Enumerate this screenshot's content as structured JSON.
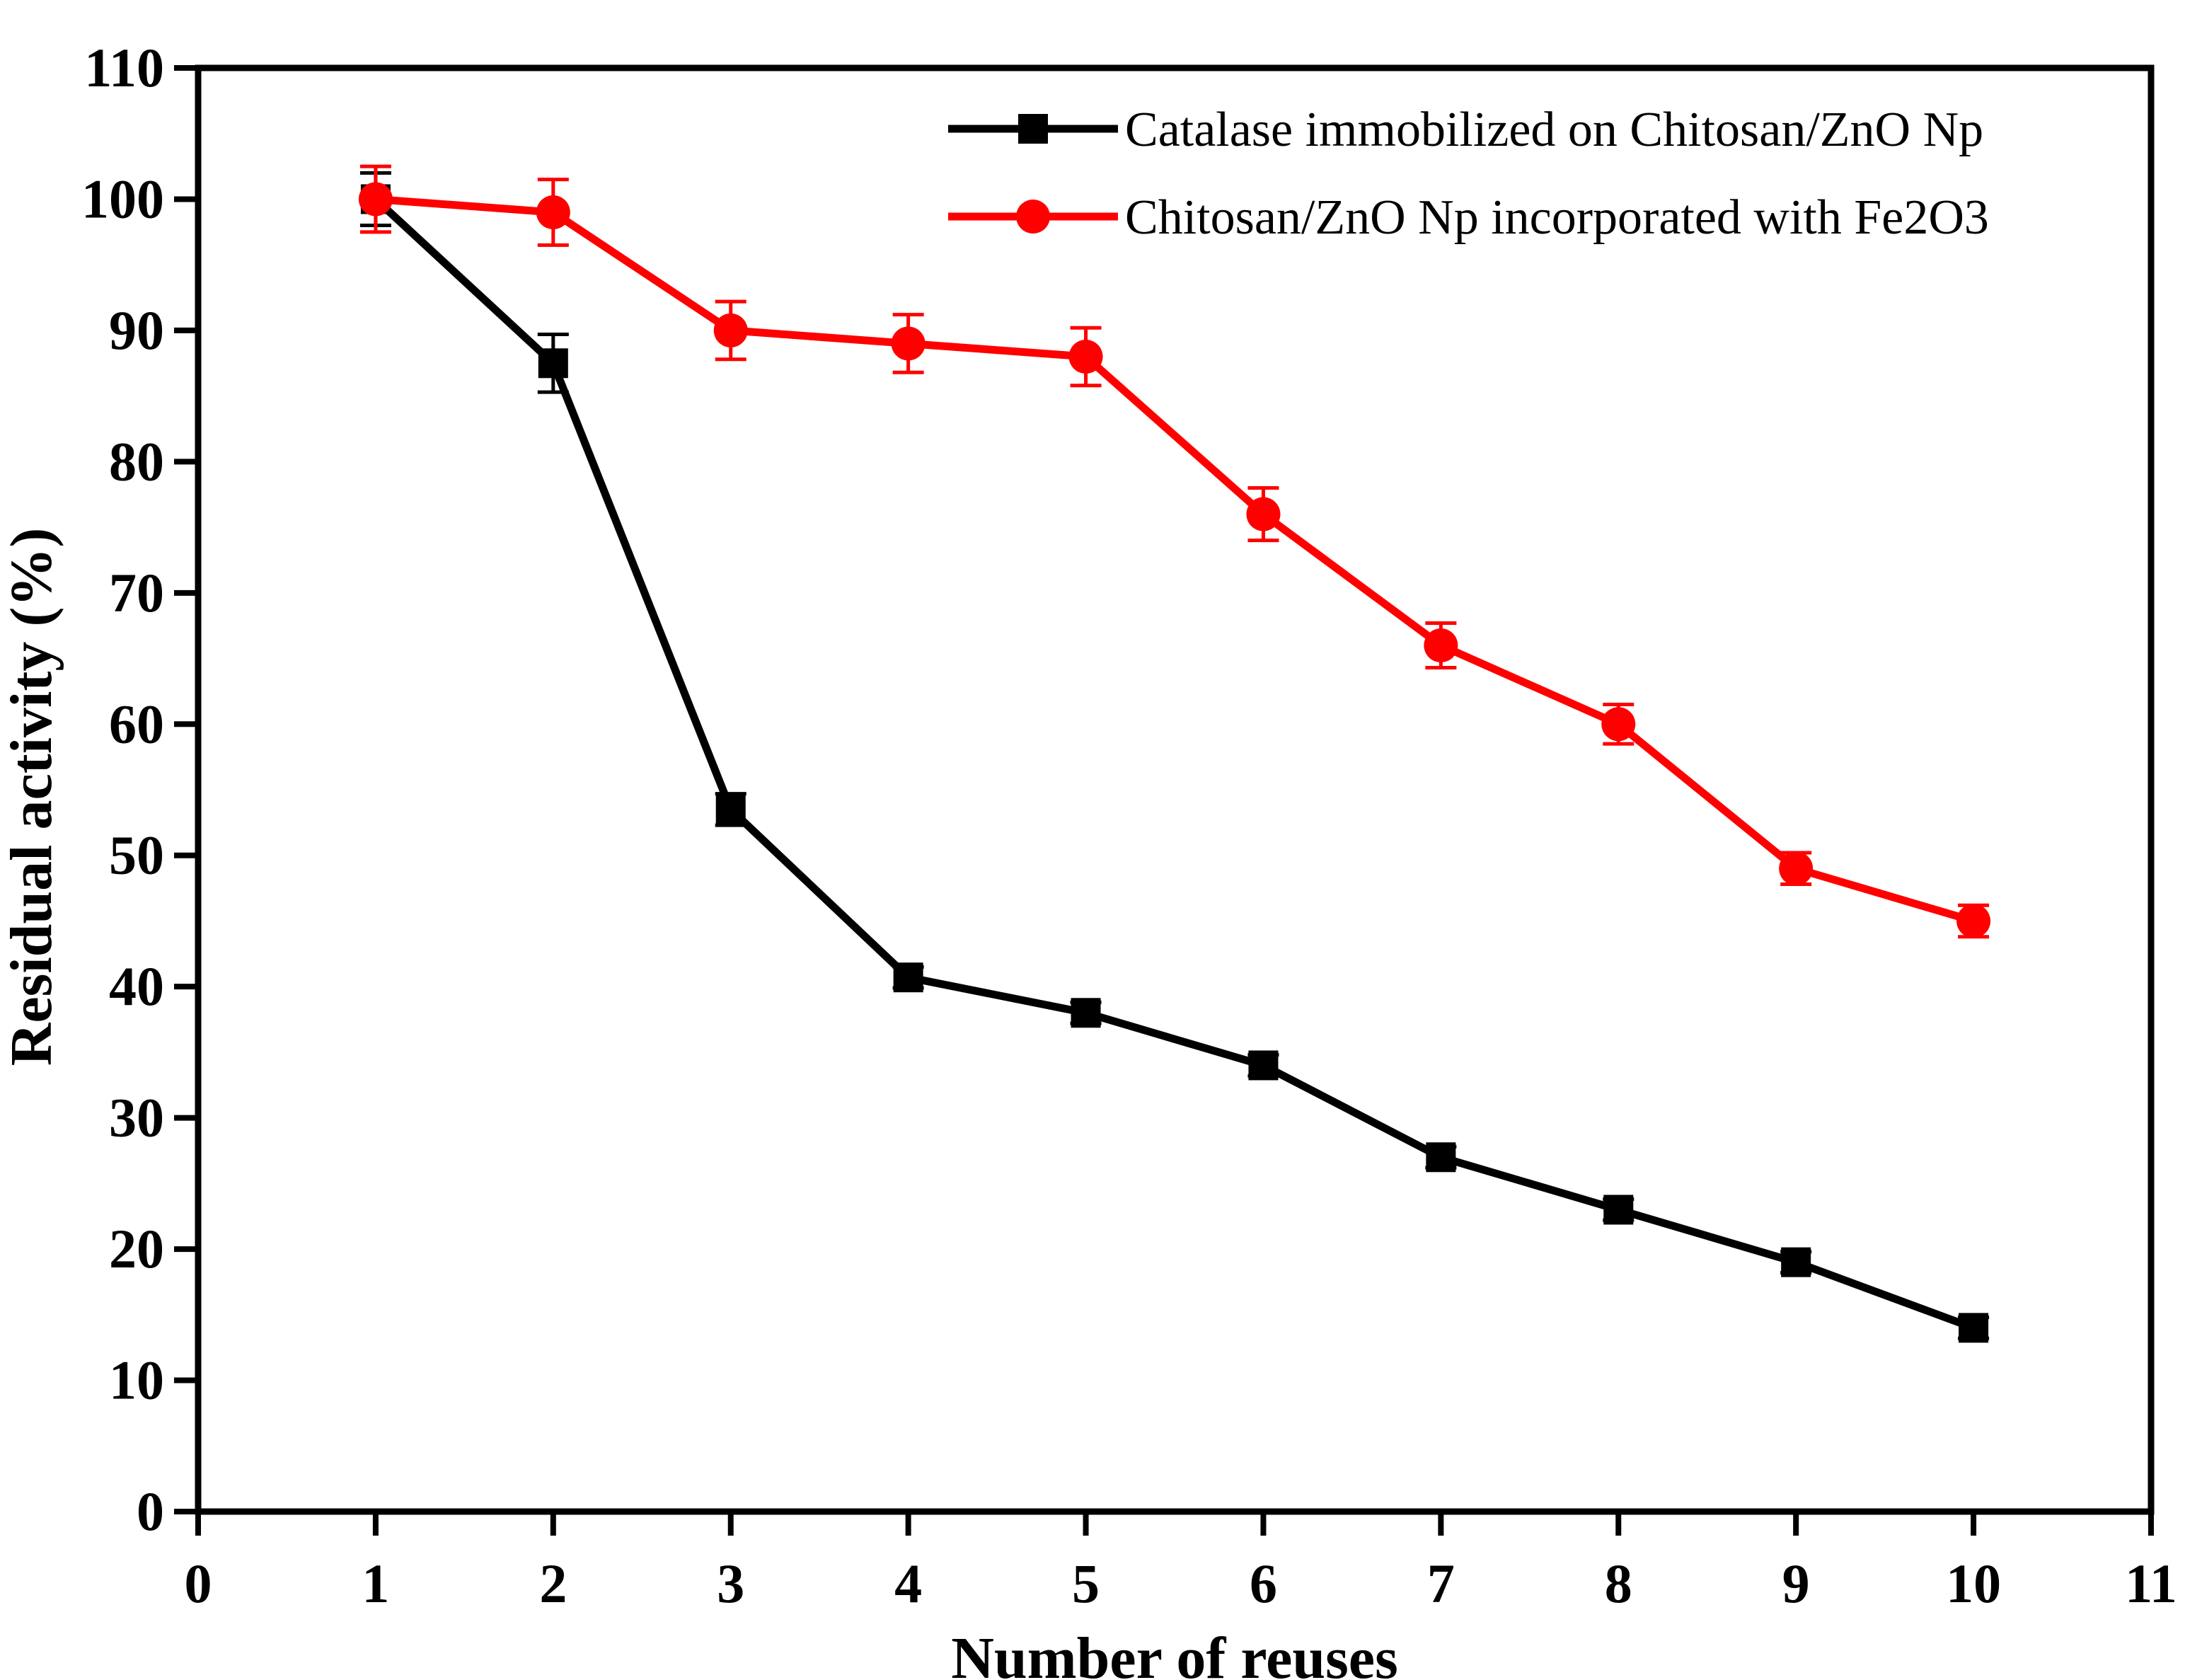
{
  "chart_data": {
    "type": "line",
    "title": "",
    "xlabel": "Number of reuses",
    "ylabel": "Residual activity (%)",
    "xlim": [
      0,
      11
    ],
    "ylim": [
      0,
      110
    ],
    "xticks": [
      0,
      1,
      2,
      3,
      4,
      5,
      6,
      7,
      8,
      9,
      10,
      11
    ],
    "yticks": [
      0,
      10,
      20,
      30,
      40,
      50,
      60,
      70,
      80,
      90,
      100,
      110
    ],
    "grid": false,
    "legend_position": "top-right",
    "series": [
      {
        "name": "Catalase immobilized on Chitosan/ZnO Np",
        "color": "#000000",
        "marker": "square",
        "x": [
          1,
          2,
          3,
          4,
          5,
          6,
          7,
          8,
          9,
          10
        ],
        "y": [
          100,
          87.5,
          53.5,
          40.7,
          38,
          34,
          27,
          23,
          19,
          14
        ],
        "error": [
          2,
          2.2,
          1.2,
          0.8,
          0.8,
          0.8,
          0.8,
          0.8,
          0.8,
          0.8
        ]
      },
      {
        "name": "Chitosan/ZnO Np incorporated with Fe2O3",
        "color": "#ff0000",
        "marker": "circle",
        "x": [
          1,
          2,
          3,
          4,
          5,
          6,
          7,
          8,
          9,
          10
        ],
        "y": [
          100,
          99,
          90,
          89,
          88,
          76,
          66,
          60,
          49,
          45
        ],
        "error": [
          2.5,
          2.5,
          2.2,
          2.2,
          2.2,
          2,
          1.7,
          1.5,
          1.2,
          1.2
        ]
      }
    ]
  }
}
